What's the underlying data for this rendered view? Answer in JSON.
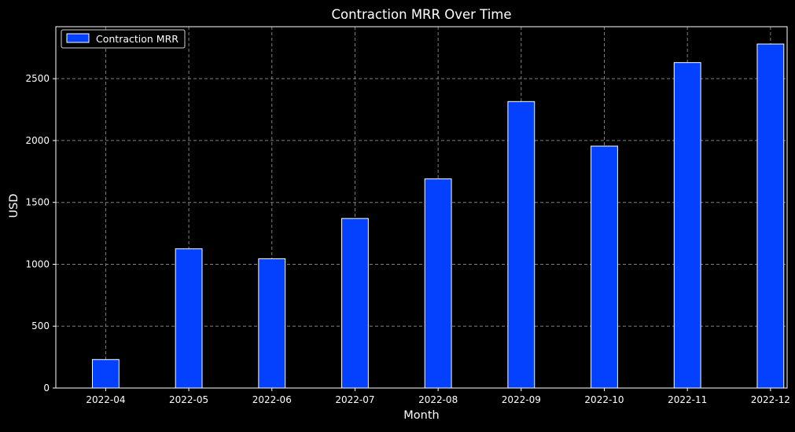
{
  "chart_data": {
    "type": "bar",
    "title": "Contraction MRR Over Time",
    "xlabel": "Month",
    "ylabel": "USD",
    "categories": [
      "2022-04",
      "2022-05",
      "2022-06",
      "2022-07",
      "2022-08",
      "2022-09",
      "2022-10",
      "2022-11",
      "2022-12"
    ],
    "series": [
      {
        "name": "Contraction MRR",
        "values": [
          230,
          1125,
          1045,
          1370,
          1690,
          2315,
          1955,
          2630,
          2780
        ],
        "color": "#0341ff"
      }
    ],
    "ylim": [
      0,
      2920
    ],
    "yticks": [
      0,
      500,
      1000,
      1500,
      2000,
      2500
    ],
    "grid": true,
    "legend_position": "top-left",
    "background": "#000000",
    "text_color": "#ffffff",
    "grid_color": "#808080",
    "bar_edge_color": "#ffffff"
  }
}
